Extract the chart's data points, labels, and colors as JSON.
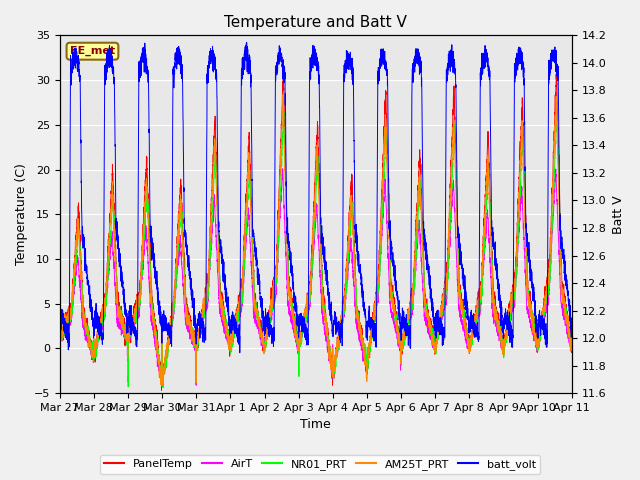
{
  "title": "Temperature and Batt V",
  "xlabel": "Time",
  "ylabel_left": "Temperature (C)",
  "ylabel_right": "Batt V",
  "ylim_left": [
    -5,
    35
  ],
  "ylim_right": [
    11.6,
    14.2
  ],
  "yticks_left": [
    -5,
    0,
    5,
    10,
    15,
    20,
    25,
    30,
    35
  ],
  "yticks_right": [
    11.6,
    11.8,
    12.0,
    12.2,
    12.4,
    12.6,
    12.8,
    13.0,
    13.2,
    13.4,
    13.6,
    13.8,
    14.0,
    14.2
  ],
  "xtick_labels": [
    "Mar 27",
    "Mar 28",
    "Mar 29",
    "Mar 30",
    "Mar 31",
    "Apr 1",
    "Apr 2",
    "Apr 3",
    "Apr 4",
    "Apr 5",
    "Apr 6",
    "Apr 7",
    "Apr 8",
    "Apr 9",
    "Apr 10",
    "Apr 11"
  ],
  "legend_entries": [
    "PanelTemp",
    "AirT",
    "NR01_PRT",
    "AM25T_PRT",
    "batt_volt"
  ],
  "legend_colors": [
    "#ff0000",
    "#ff00ff",
    "#00ff00",
    "#ff8800",
    "#0000ff"
  ],
  "annotation_text": "EE_met",
  "background_color": "#e8e8e8",
  "fig_facecolor": "#f0f0f0",
  "n_days": 15,
  "pts_per_day": 288,
  "day_peak_temps": [
    16,
    20,
    21,
    19,
    26,
    24,
    31,
    25,
    19,
    29,
    22,
    29,
    24,
    28,
    31
  ],
  "day_night_mins": [
    1,
    -1,
    1,
    -4,
    0,
    0,
    0,
    0,
    -3,
    -2,
    0,
    0,
    0,
    0,
    0
  ]
}
